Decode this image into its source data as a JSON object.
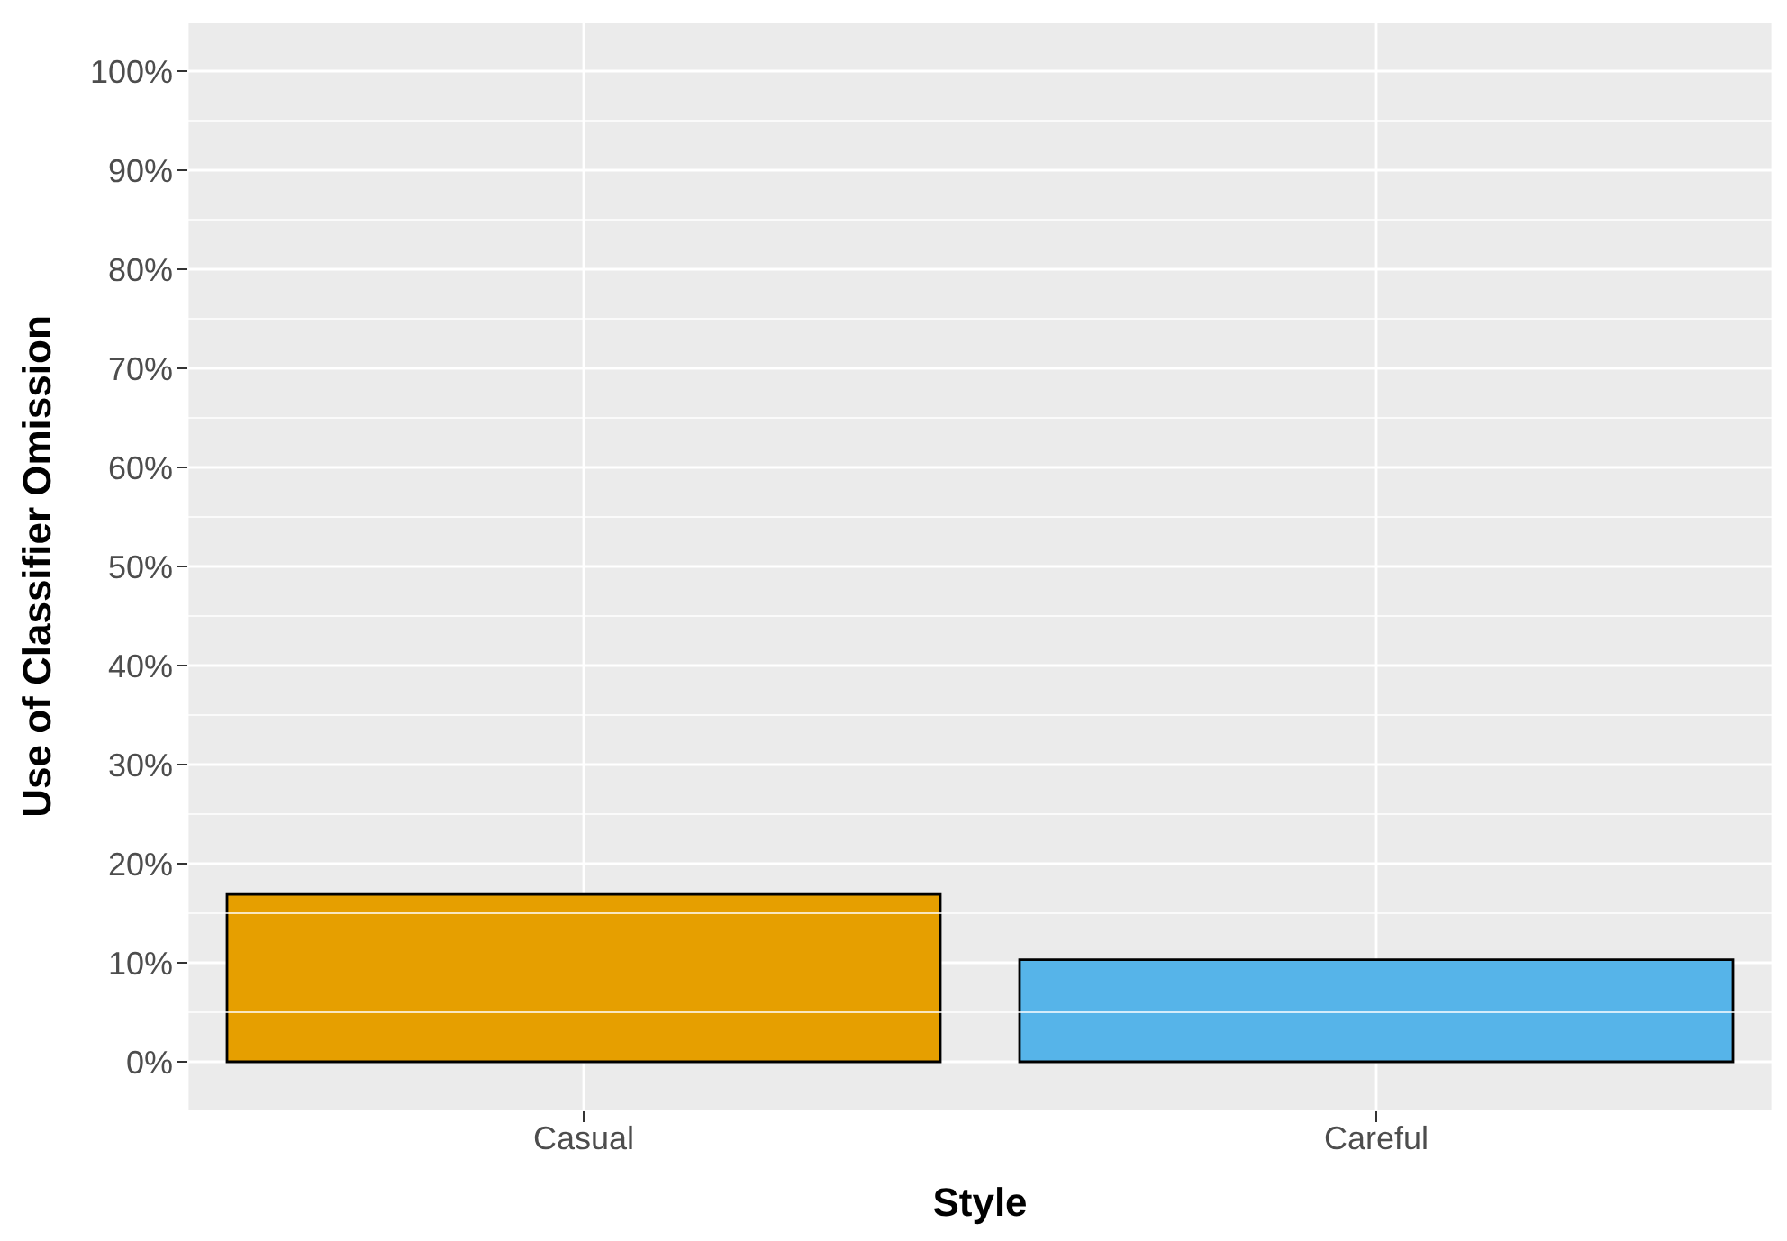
{
  "chart_data": {
    "type": "bar",
    "xlabel": "Style",
    "ylabel": "Use of Classifier Omission",
    "categories": [
      "Casual",
      "Careful"
    ],
    "values": [
      16.9,
      10.3
    ],
    "colors": [
      "#e69f00",
      "#56b4e9"
    ],
    "ylim": [
      -5,
      105
    ],
    "yticks": [
      {
        "value": 0,
        "label": "0%"
      },
      {
        "value": 10,
        "label": "10%"
      },
      {
        "value": 20,
        "label": "20%"
      },
      {
        "value": 30,
        "label": "30%"
      },
      {
        "value": 40,
        "label": "40%"
      },
      {
        "value": 50,
        "label": "50%"
      },
      {
        "value": 60,
        "label": "60%"
      },
      {
        "value": 70,
        "label": "70%"
      },
      {
        "value": 80,
        "label": "80%"
      },
      {
        "value": 90,
        "label": "90%"
      },
      {
        "value": 100,
        "label": "100%"
      }
    ],
    "grid": true
  }
}
